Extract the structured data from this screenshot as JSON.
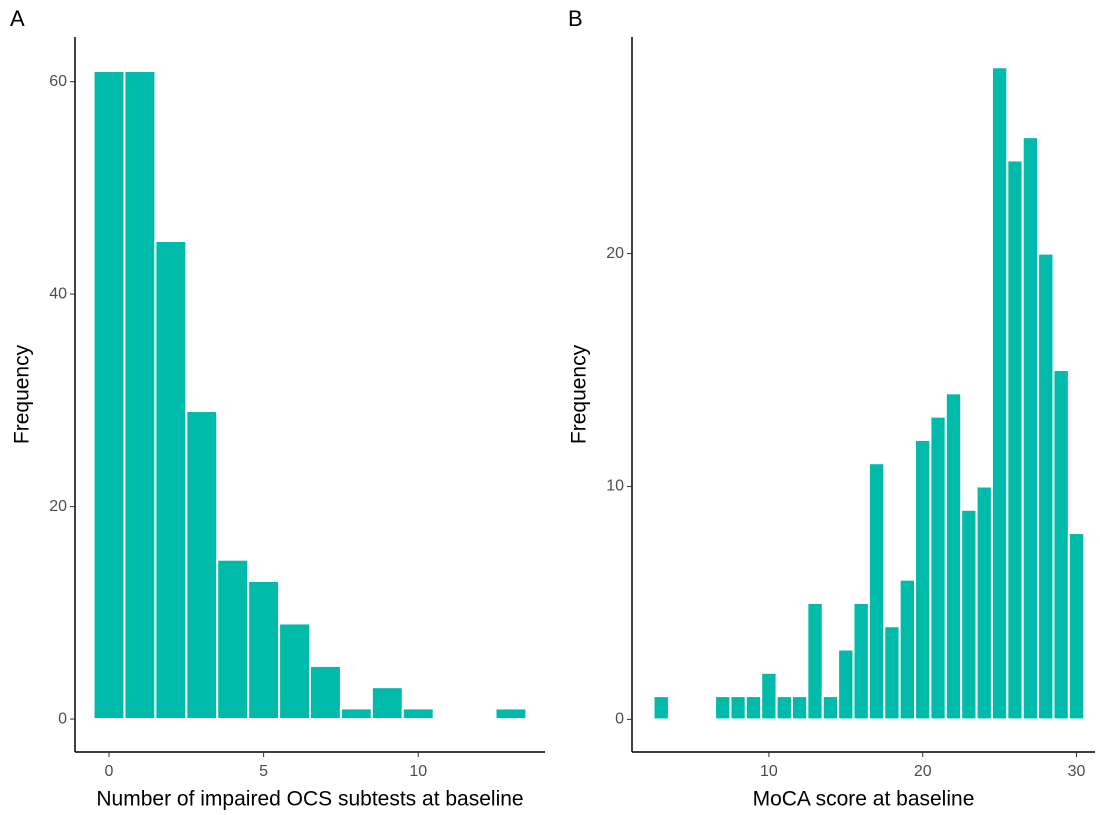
{
  "chart_data": [
    {
      "type": "histogram",
      "panel": "A",
      "xlabel": "Number of impaired OCS subtests at baseline",
      "ylabel": "Frequency",
      "bins": [
        -0.5,
        0.5,
        1.5,
        2.5,
        3.5,
        4.5,
        5.5,
        6.5,
        7.5,
        8.5,
        9.5,
        10.5,
        11.5,
        12.5,
        13.5
      ],
      "values": [
        61,
        61,
        45,
        29,
        15,
        13,
        9,
        5,
        1,
        3,
        1,
        0,
        0,
        1
      ],
      "color": "#00bbaa",
      "xlim": [
        -1.1,
        14.1
      ],
      "xticks": [
        0,
        5,
        10
      ],
      "ylim": [
        -3.1,
        64.2
      ],
      "yticks": [
        0,
        20,
        40,
        60
      ]
    },
    {
      "type": "histogram",
      "panel": "B",
      "xlabel": "MoCA score at baseline",
      "ylabel": "Frequency",
      "bins": [
        2.5,
        3.5,
        4.5,
        5.5,
        6.5,
        7.5,
        8.5,
        9.5,
        10.5,
        11.5,
        12.5,
        13.5,
        14.5,
        15.5,
        16.5,
        17.5,
        18.5,
        19.5,
        20.5,
        21.5,
        22.5,
        23.5,
        24.5,
        25.5,
        26.5,
        27.5,
        28.5,
        29.5,
        30.5
      ],
      "values": [
        1,
        0,
        0,
        0,
        1,
        1,
        1,
        2,
        1,
        1,
        5,
        1,
        3,
        5,
        11,
        4,
        6,
        12,
        13,
        14,
        9,
        10,
        28,
        24,
        25,
        20,
        15,
        8
      ],
      "color": "#00bbaa",
      "xlim": [
        1.1,
        31.2
      ],
      "xticks": [
        10,
        20,
        30
      ],
      "ylim": [
        -1.4,
        29.3
      ],
      "yticks": [
        0,
        10,
        20
      ]
    }
  ]
}
